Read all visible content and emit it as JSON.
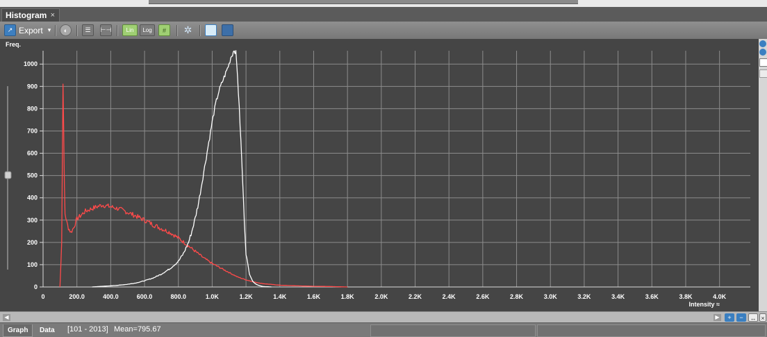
{
  "panel": {
    "title": "Histogram",
    "close": "×"
  },
  "toolbar": {
    "export_label": "Export",
    "export_caret": "▾",
    "lin_label": "Lin",
    "log_label": "Log"
  },
  "status": {
    "tab_graph": "Graph",
    "tab_data": "Data",
    "range": "[101 - 2013]",
    "mean": "Mean=795.67"
  },
  "colors": {
    "plot_bg": "#454545",
    "grid": "#8c8c8c",
    "red_series": "#ff4a4a",
    "white_series": "#ffffff"
  },
  "chart_data": {
    "type": "line",
    "ylabel": "Freq.",
    "xlabel": "Intensity ≈",
    "xlim": [
      0,
      4100
    ],
    "ylim": [
      0,
      1060
    ],
    "x_ticks": [
      0,
      200,
      400,
      600,
      800,
      1000,
      1200,
      1400,
      1600,
      1800,
      2000,
      2200,
      2400,
      2600,
      2800,
      3000,
      3200,
      3400,
      3600,
      3800,
      4000
    ],
    "x_tick_labels": [
      "0",
      "200.0",
      "400.0",
      "600.0",
      "800.0",
      "1.0K",
      "1.2K",
      "1.4K",
      "1.6K",
      "1.8K",
      "2.0K",
      "2.2K",
      "2.4K",
      "2.6K",
      "2.8K",
      "3.0K",
      "3.2K",
      "3.4K",
      "3.6K",
      "3.8K",
      "4.0K"
    ],
    "y_ticks": [
      0,
      100,
      200,
      300,
      400,
      500,
      600,
      700,
      800,
      900,
      1000
    ],
    "y_tick_labels": [
      "0",
      "100",
      "200",
      "300",
      "400",
      "500",
      "600",
      "700",
      "800",
      "900",
      "1000"
    ],
    "grid": true,
    "series": [
      {
        "color": "#ff4a4a",
        "x": [
          100,
          110,
          118,
          122,
          126,
          130,
          140,
          150,
          165,
          180,
          200,
          250,
          300,
          350,
          400,
          450,
          500,
          550,
          600,
          650,
          700,
          750,
          800,
          850,
          900,
          950,
          1000,
          1050,
          1100,
          1150,
          1200,
          1250,
          1300,
          1400,
          1500,
          1600,
          1700,
          1800
        ],
        "values": [
          0,
          200,
          916,
          700,
          450,
          330,
          290,
          265,
          245,
          265,
          305,
          340,
          355,
          368,
          360,
          350,
          335,
          318,
          300,
          280,
          262,
          245,
          220,
          190,
          160,
          130,
          105,
          85,
          65,
          45,
          32,
          22,
          15,
          8,
          5,
          3,
          2,
          0
        ]
      },
      {
        "color": "#ffffff",
        "x": [
          290,
          350,
          400,
          450,
          500,
          550,
          600,
          650,
          700,
          750,
          800,
          830,
          860,
          880,
          900,
          920,
          940,
          960,
          980,
          1000,
          1020,
          1040,
          1060,
          1080,
          1100,
          1110,
          1120,
          1130,
          1140,
          1150,
          1160,
          1170,
          1180,
          1190,
          1200,
          1220,
          1240,
          1260,
          1280,
          1300,
          1350
        ],
        "values": [
          0,
          3,
          5,
          8,
          12,
          18,
          28,
          40,
          58,
          82,
          115,
          150,
          200,
          250,
          310,
          380,
          470,
          560,
          650,
          740,
          820,
          880,
          920,
          960,
          1000,
          1030,
          1045,
          1065,
          1050,
          950,
          800,
          650,
          480,
          300,
          150,
          60,
          25,
          12,
          6,
          2,
          0
        ]
      }
    ]
  }
}
